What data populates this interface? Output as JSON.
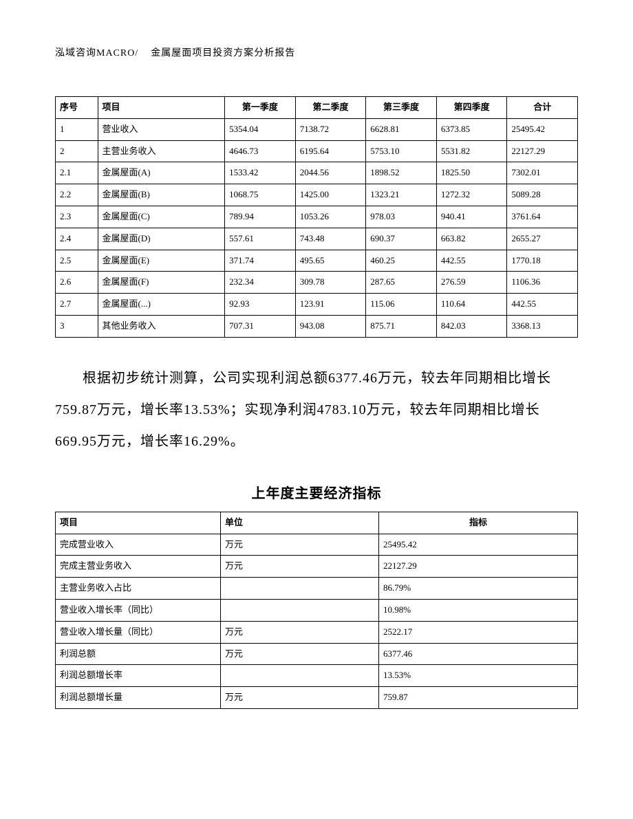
{
  "header": {
    "left": "泓域咨询MACRO/",
    "right": "金属屋面项目投资方案分析报告"
  },
  "table1": {
    "columns": [
      "序号",
      "项目",
      "第一季度",
      "第二季度",
      "第三季度",
      "第四季度",
      "合计"
    ],
    "rows": [
      [
        "1",
        "营业收入",
        "5354.04",
        "7138.72",
        "6628.81",
        "6373.85",
        "25495.42"
      ],
      [
        "2",
        "主营业务收入",
        "4646.73",
        "6195.64",
        "5753.10",
        "5531.82",
        "22127.29"
      ],
      [
        "2.1",
        "金属屋面(A)",
        "1533.42",
        "2044.56",
        "1898.52",
        "1825.50",
        "7302.01"
      ],
      [
        "2.2",
        "金属屋面(B)",
        "1068.75",
        "1425.00",
        "1323.21",
        "1272.32",
        "5089.28"
      ],
      [
        "2.3",
        "金属屋面(C)",
        "789.94",
        "1053.26",
        "978.03",
        "940.41",
        "3761.64"
      ],
      [
        "2.4",
        "金属屋面(D)",
        "557.61",
        "743.48",
        "690.37",
        "663.82",
        "2655.27"
      ],
      [
        "2.5",
        "金属屋面(E)",
        "371.74",
        "495.65",
        "460.25",
        "442.55",
        "1770.18"
      ],
      [
        "2.6",
        "金属屋面(F)",
        "232.34",
        "309.78",
        "287.65",
        "276.59",
        "1106.36"
      ],
      [
        "2.7",
        "金属屋面(...)",
        "92.93",
        "123.91",
        "115.06",
        "110.64",
        "442.55"
      ],
      [
        "3",
        "其他业务收入",
        "707.31",
        "943.08",
        "875.71",
        "842.03",
        "3368.13"
      ]
    ]
  },
  "paragraph": "根据初步统计测算，公司实现利润总额6377.46万元，较去年同期相比增长759.87万元，增长率13.53%；实现净利润4783.10万元，较去年同期相比增长669.95万元，增长率16.29%。",
  "section_title": "上年度主要经济指标",
  "table2": {
    "columns": [
      "项目",
      "单位",
      "指标"
    ],
    "rows": [
      [
        "完成营业收入",
        "万元",
        "25495.42"
      ],
      [
        "完成主营业务收入",
        "万元",
        "22127.29"
      ],
      [
        "主营业务收入占比",
        "",
        "86.79%"
      ],
      [
        "营业收入增长率（同比）",
        "",
        "10.98%"
      ],
      [
        "营业收入增长量（同比）",
        "万元",
        "2522.17"
      ],
      [
        "利润总额",
        "万元",
        "6377.46"
      ],
      [
        "利润总额增长率",
        "",
        "13.53%"
      ],
      [
        "利润总额增长量",
        "万元",
        "759.87"
      ]
    ]
  }
}
